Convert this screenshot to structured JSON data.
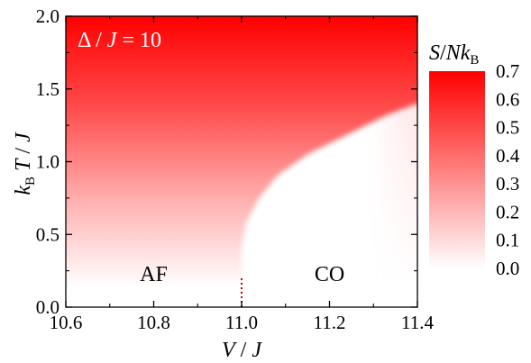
{
  "chart_data": {
    "type": "heatmap",
    "title": "",
    "annotation": {
      "delta_symbol": "Δ",
      "sep": " / ",
      "j_symbol": "J",
      "eq": " = 10"
    },
    "xlabel": {
      "symbol": "V",
      "sep": " / ",
      "unit": "J"
    },
    "ylabel": {
      "k": "k",
      "sub": "B",
      "t": "T",
      "sep": " / ",
      "unit": "J"
    },
    "colorbar_label": {
      "s": "S",
      "slash": "/",
      "n": "N",
      "k": "k",
      "sub": "B"
    },
    "xlim": [
      10.6,
      11.4
    ],
    "ylim": [
      0.0,
      2.0
    ],
    "x_ticks": [
      "10.6",
      "10.8",
      "11.0",
      "11.2",
      "11.4"
    ],
    "y_ticks": [
      "0.0",
      "0.5",
      "1.0",
      "1.5",
      "2.0"
    ],
    "colorbar_ticks": [
      "0.0",
      "0.1",
      "0.2",
      "0.3",
      "0.4",
      "0.5",
      "0.6",
      "0.7"
    ],
    "colorbar_range": [
      0.0,
      0.7
    ],
    "colormap": {
      "low": "#ffffff",
      "high": "#ff0000"
    },
    "regions": [
      {
        "label": "AF",
        "x": 10.8,
        "y": 0.18
      },
      {
        "label": "CO",
        "x": 11.2,
        "y": 0.18
      }
    ],
    "boundary": {
      "x_critical": 11.0,
      "dotted_line_color": "#cc0000",
      "dotted_line_y": [
        0.0,
        0.2
      ],
      "curve_points": [
        {
          "V": 11.0,
          "T": 0.4
        },
        {
          "V": 11.01,
          "T": 0.58
        },
        {
          "V": 11.04,
          "T": 0.75
        },
        {
          "V": 11.08,
          "T": 0.9
        },
        {
          "V": 11.15,
          "T": 1.05
        },
        {
          "V": 11.25,
          "T": 1.2
        },
        {
          "V": 11.33,
          "T": 1.32
        },
        {
          "V": 11.4,
          "T": 1.4
        }
      ]
    }
  }
}
